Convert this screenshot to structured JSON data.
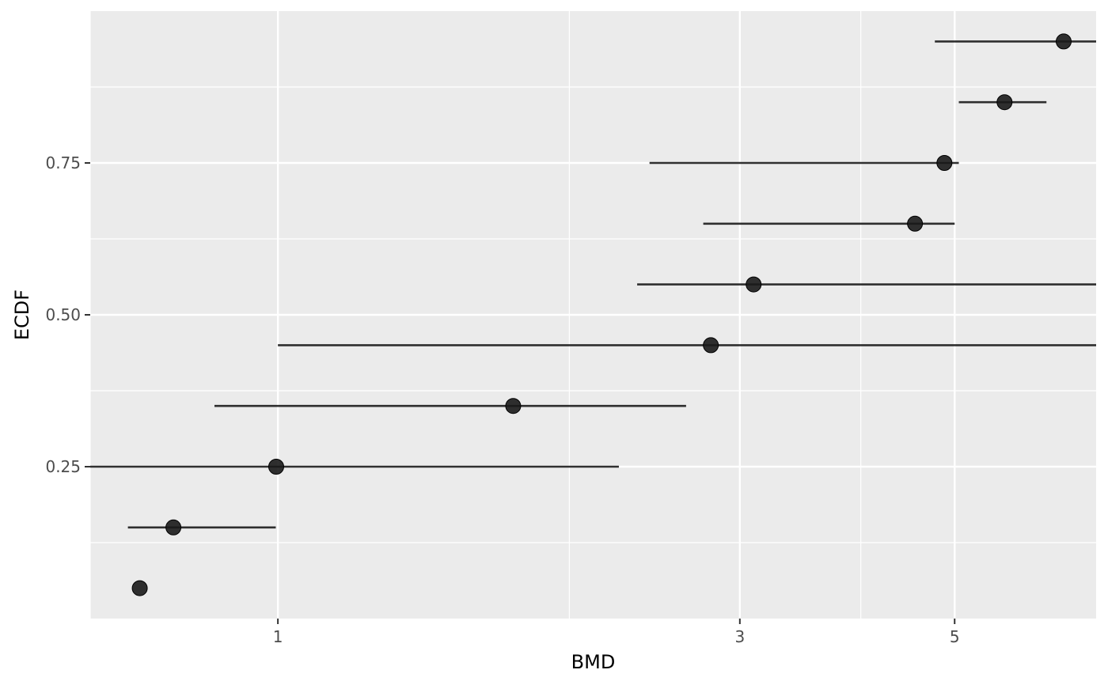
{
  "chart_data": {
    "type": "scatter",
    "title": "",
    "xlabel": "BMD",
    "ylabel": "ECDF",
    "x_scale": "log",
    "xlim": [
      0.64,
      7.0
    ],
    "ylim": [
      0.0,
      1.0
    ],
    "x_ticks": [
      {
        "value": 1,
        "label": "1"
      },
      {
        "value": 3,
        "label": "3"
      },
      {
        "value": 5,
        "label": "5"
      }
    ],
    "x_minor_grid": [
      0.64,
      2.0,
      4.0
    ],
    "y_ticks": [
      {
        "value": 0.25,
        "label": "0.25"
      },
      {
        "value": 0.5,
        "label": "0.50"
      },
      {
        "value": 0.75,
        "label": "0.75"
      }
    ],
    "y_minor_grid": [
      0.125,
      0.375,
      0.625,
      0.875
    ],
    "grid": true,
    "background": "#ebebeb",
    "point_color": "#1a1a1a",
    "bar_color": "#1a1a1a",
    "points": [
      {
        "x": 0.72,
        "y": 0.05,
        "lower": null,
        "upper": null
      },
      {
        "x": 0.78,
        "y": 0.15,
        "lower": 0.7,
        "upper": 0.995
      },
      {
        "x": 0.996,
        "y": 0.25,
        "lower": 0.64,
        "upper": 2.25
      },
      {
        "x": 1.75,
        "y": 0.35,
        "lower": 0.86,
        "upper": 2.64
      },
      {
        "x": 2.8,
        "y": 0.45,
        "lower": 1.0,
        "upper": 7.0
      },
      {
        "x": 3.1,
        "y": 0.55,
        "lower": 2.35,
        "upper": 7.0
      },
      {
        "x": 4.55,
        "y": 0.65,
        "lower": 2.75,
        "upper": 5.0
      },
      {
        "x": 4.88,
        "y": 0.75,
        "lower": 2.42,
        "upper": 5.05
      },
      {
        "x": 5.63,
        "y": 0.85,
        "lower": 5.05,
        "upper": 6.22
      },
      {
        "x": 6.48,
        "y": 0.95,
        "lower": 4.77,
        "upper": 7.0
      }
    ]
  }
}
